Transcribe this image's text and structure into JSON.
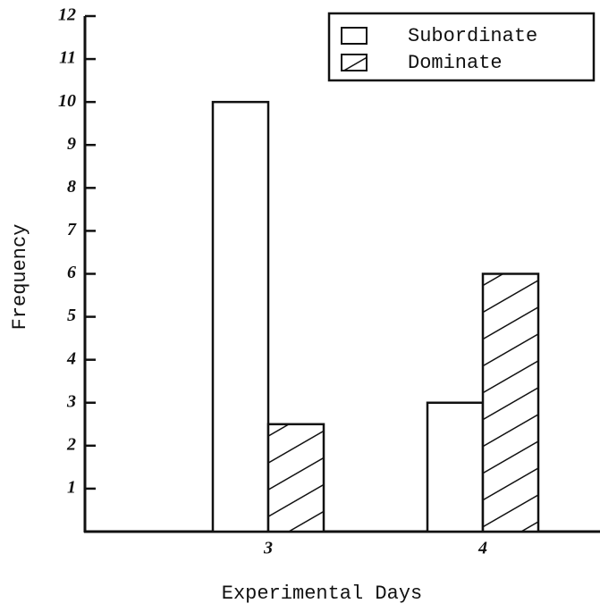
{
  "chart_data": {
    "type": "bar",
    "categories": [
      "3",
      "4"
    ],
    "series": [
      {
        "name": "Subordinate",
        "color": "#ffffff",
        "hatch": false,
        "values": [
          10,
          3
        ]
      },
      {
        "name": "Dominate",
        "color": "#ffffff",
        "hatch": true,
        "values": [
          2.5,
          6
        ]
      }
    ],
    "x_label": "Experimental Days",
    "y_label": "Frequency",
    "ylim": [
      0,
      12
    ],
    "yticks": [
      1,
      2,
      3,
      4,
      5,
      6,
      7,
      8,
      9,
      10,
      11,
      12
    ],
    "legend": "upper right"
  }
}
